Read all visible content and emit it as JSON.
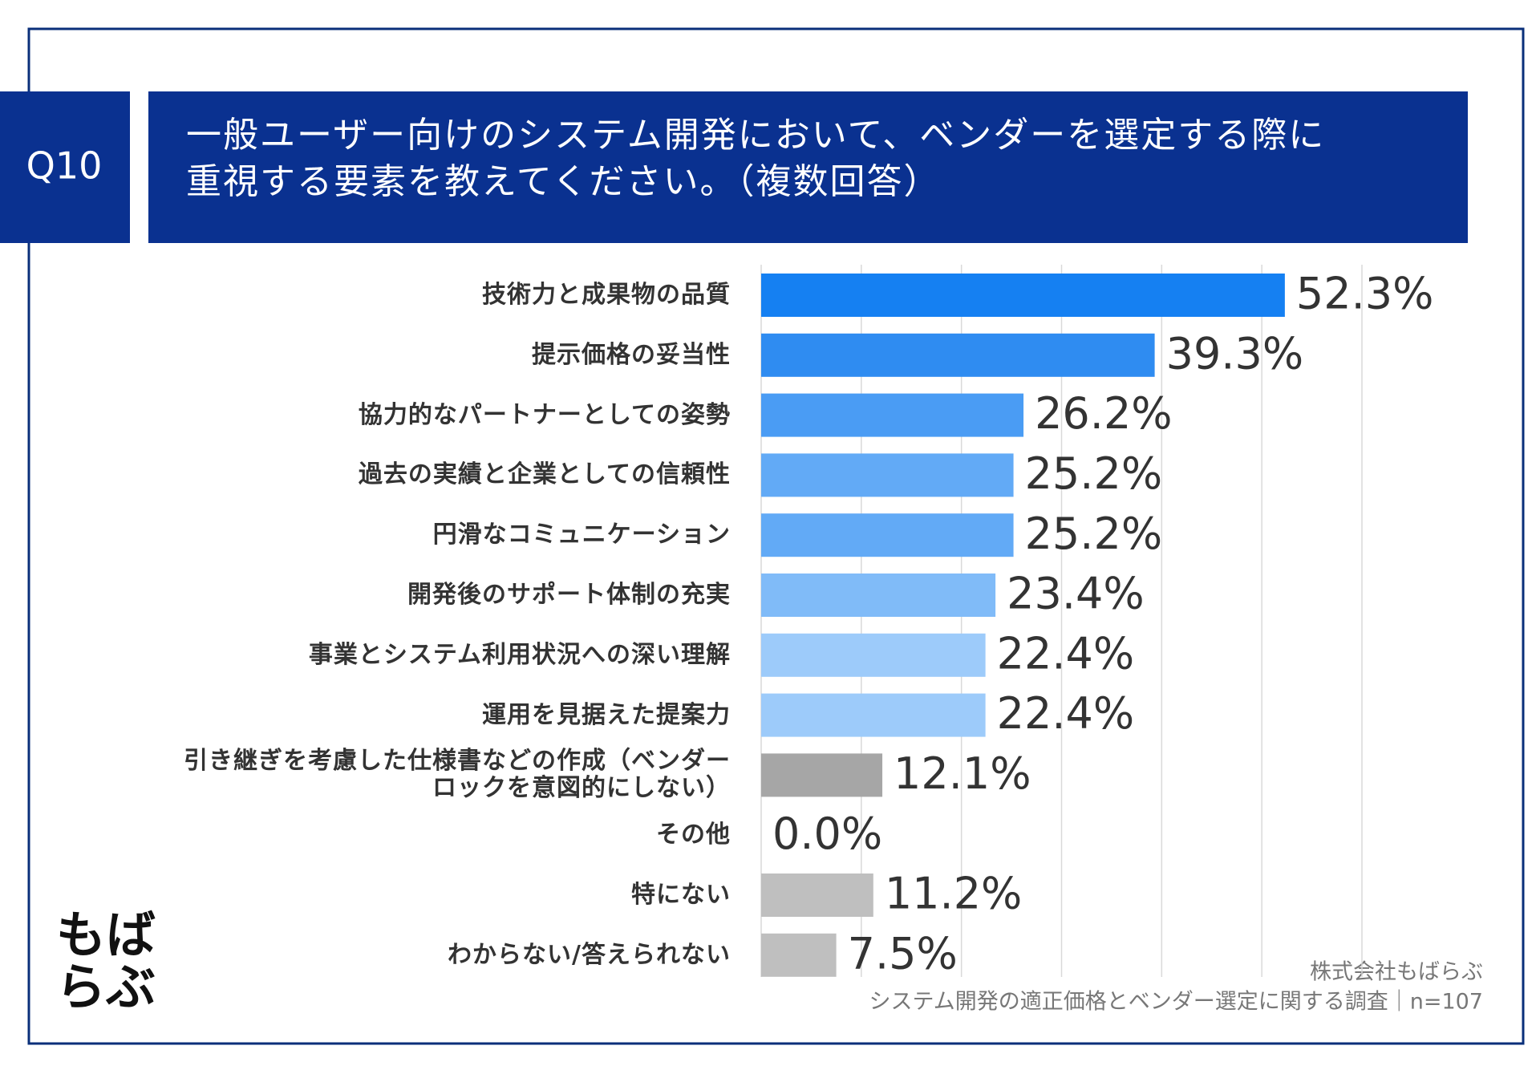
{
  "chart_data": {
    "type": "bar",
    "orientation": "horizontal",
    "question": "Q10",
    "title": "一般ユーザー向けのシステム開発において、ベンダーを選定する際に\n重視する要素を教えてください。（複数回答）",
    "categories": [
      "技術力と成果物の品質",
      "提示価格の妥当性",
      "協力的なパートナーとしての姿勢",
      "過去の実績と企業としての信頼性",
      "円滑なコミュニケーション",
      "開発後のサポート体制の充実",
      "事業とシステム利用状況への深い理解",
      "運用を見据えた提案力",
      "引き継ぎを考慮した仕様書などの作成（ベンダー\nロックを意図的にしない）",
      "その他",
      "特にない",
      "わからない/答えられない"
    ],
    "values": [
      52.3,
      39.3,
      26.2,
      25.2,
      25.2,
      23.4,
      22.4,
      22.4,
      12.1,
      0.0,
      11.2,
      7.5
    ],
    "value_labels": [
      "52.3%",
      "39.3%",
      "26.2%",
      "25.2%",
      "25.2%",
      "23.4%",
      "22.4%",
      "22.4%",
      "12.1%",
      "0.0%",
      "11.2%",
      "7.5%"
    ],
    "colors": [
      "#1580f2",
      "#2f8cf1",
      "#4a9cf4",
      "#62aaf6",
      "#62aaf6",
      "#80bbf8",
      "#9dcbfa",
      "#9dcbfa",
      "#a6a6a6",
      "#bfbfbf",
      "#bfbfbf",
      "#bfbfbf"
    ],
    "xlim": [
      0,
      60
    ],
    "xticks": [
      0,
      10,
      20,
      30,
      40,
      50,
      60
    ],
    "grid": true,
    "source": [
      "株式会社もばらぶ",
      "システム開発の適正価格とベンダー選定に関する調査｜n=107"
    ],
    "logo": [
      "もば",
      "らぶ"
    ]
  }
}
